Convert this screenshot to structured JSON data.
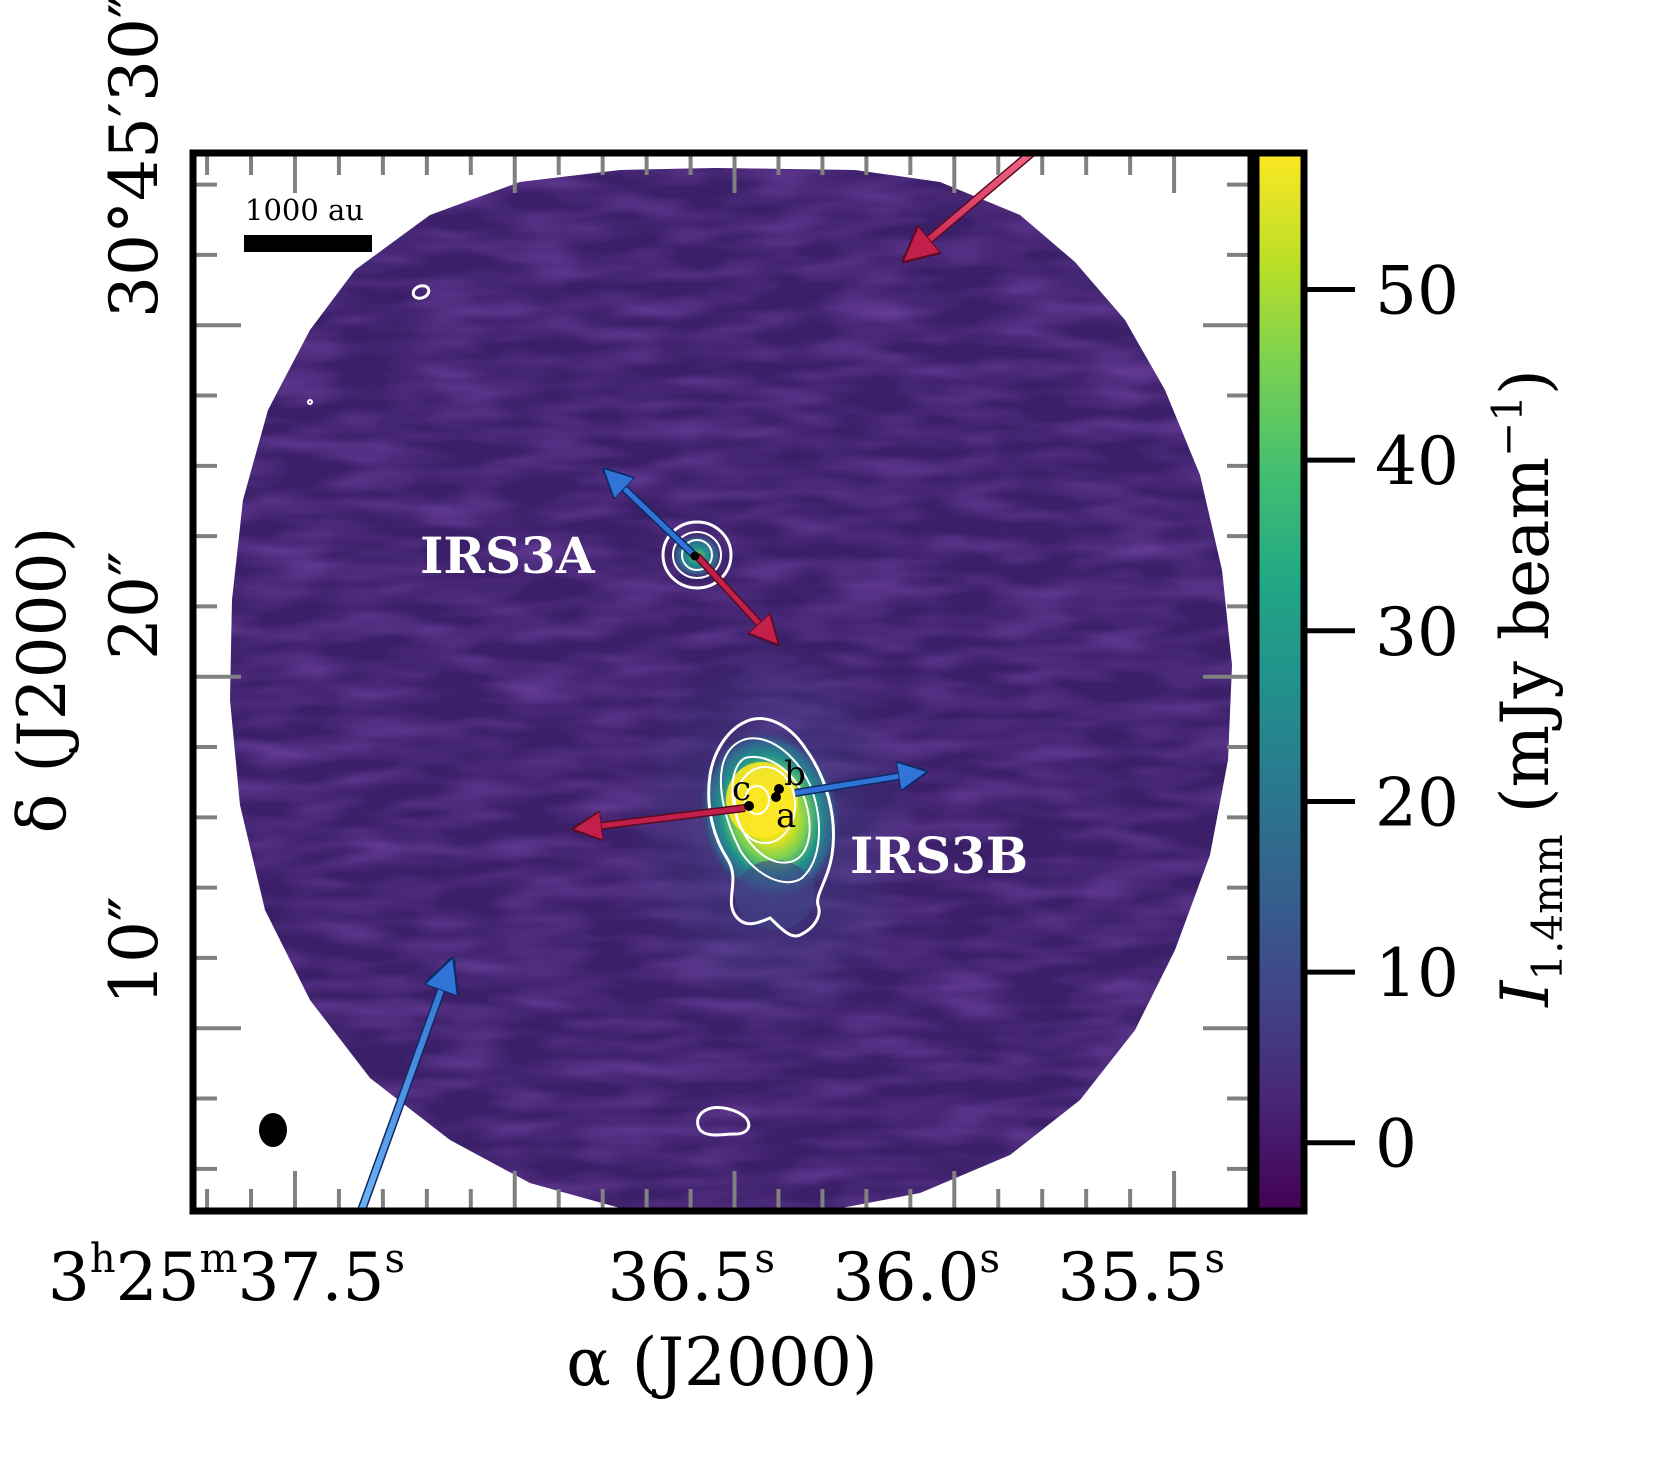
{
  "chart_data": {
    "type": "heatmap",
    "title": "",
    "xlabel": "α (J2000)",
    "ylabel": "δ (J2000)",
    "colorbar_label": "I1.4mm (mJy beam−1)",
    "colorbar_range": [
      -4,
      58
    ],
    "colorbar_ticks": [
      0,
      10,
      20,
      30,
      40,
      50
    ],
    "colormap": "viridis",
    "x_tick_labels": [
      {
        "h": "3",
        "m": "25",
        "s": "37.5",
        "ra_seconds": 37.5
      },
      {
        "s": "36.5",
        "ra_seconds": 36.5
      },
      {
        "s": "36.0",
        "ra_seconds": 36.0
      },
      {
        "s": "35.5",
        "ra_seconds": 35.5
      }
    ],
    "y_tick_labels": [
      {
        "label": "30°45′30″",
        "dec_arcsec": 30
      },
      {
        "label": "20″",
        "dec_arcsec": 20
      },
      {
        "label": "10″",
        "dec_arcsec": 10
      }
    ],
    "ra_range_s": [
      37.732,
      35.325
    ],
    "dec_range_arcsec": [
      4.8,
      34.9
    ],
    "scale_bar_label": "1000 au",
    "sources": [
      {
        "name": "IRS3A",
        "ra_s": 36.52,
        "dec_arcsec": 21.9,
        "peak_mJy": 40
      },
      {
        "name": "IRS3B",
        "ra_s": 36.37,
        "dec_arcsec": 15.0,
        "peak_mJy": 58
      }
    ],
    "components": [
      {
        "label": "a",
        "ra_s": 36.34,
        "dec_arcsec": 15.3
      },
      {
        "label": "b",
        "ra_s": 36.33,
        "dec_arcsec": 15.5
      },
      {
        "label": "c",
        "ra_s": 36.39,
        "dec_arcsec": 15.3
      }
    ],
    "outflow_colors": {
      "blue": "#2f74d6",
      "red": "#c2204a"
    }
  }
}
